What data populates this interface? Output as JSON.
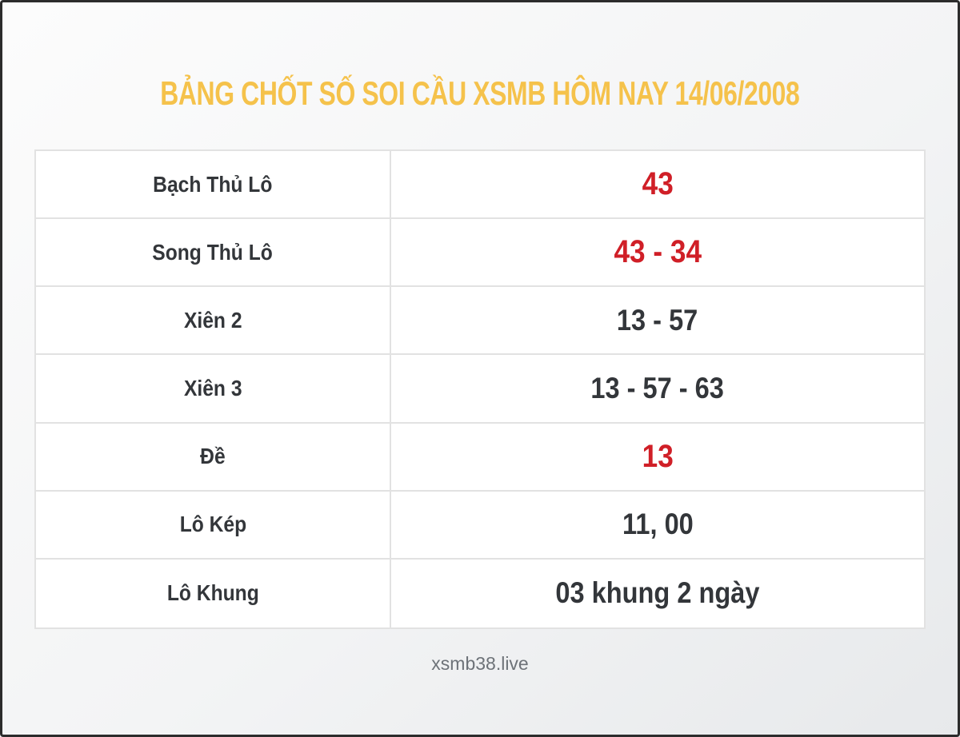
{
  "page": {
    "title": "BẢNG CHỐT SỐ SOI CẦU XSMB HÔM NAY 14/06/2008",
    "footer": "xsmb38.live"
  },
  "colors": {
    "frame": "#2c2c2c",
    "bg-start": "#fcfcfc",
    "bg-end": "#e7e9eb",
    "title": "#f5c24b",
    "text": "#33363a",
    "value-highlight": "#d01f27",
    "table-border": "#e2e2e2",
    "cell-bg": "#ffffff",
    "footer-text": "#6d7278"
  },
  "chart_data": {
    "type": "table",
    "title": "BẢNG CHỐT SỐ SOI CẦU XSMB HÔM NAY 14/06/2008",
    "columns": [
      "category",
      "prediction"
    ],
    "rows": [
      {
        "label": "Bạch Thủ Lô",
        "value": "43",
        "highlight": true
      },
      {
        "label": "Song Thủ Lô",
        "value": "43 - 34",
        "highlight": true
      },
      {
        "label": "Xiên 2",
        "value": "13 - 57",
        "highlight": false
      },
      {
        "label": "Xiên 3",
        "value": "13 - 57 - 63",
        "highlight": false
      },
      {
        "label": "Đề",
        "value": "13",
        "highlight": true
      },
      {
        "label": "Lô Kép",
        "value": "11, 00",
        "highlight": false
      },
      {
        "label": "Lô Khung",
        "value": "03 khung 2 ngày",
        "highlight": false
      }
    ]
  }
}
